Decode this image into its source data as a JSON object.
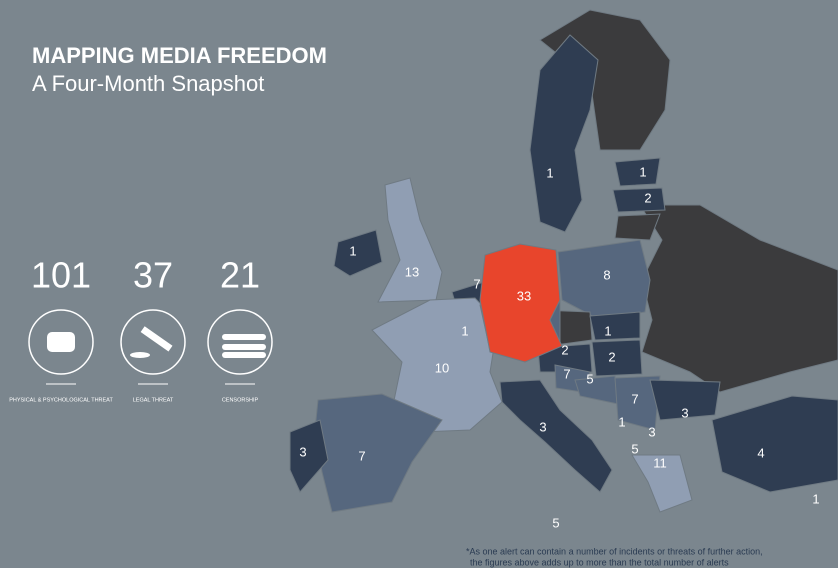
{
  "header": {
    "title": "MAPPING MEDIA FREEDOM",
    "subtitle": "A Four-Month Snapshot"
  },
  "stats": [
    {
      "value": 101,
      "label": "PHYSICAL & PSYCHOLOGICAL THREAT"
    },
    {
      "value": 37,
      "label": "LEGAL THREAT"
    },
    {
      "value": 21,
      "label": "CENSORSHIP"
    }
  ],
  "map": {
    "alerts": [
      1,
      1,
      2,
      1,
      13,
      7,
      1,
      33,
      8,
      1,
      2,
      2,
      7,
      5,
      7,
      10,
      3,
      7,
      3,
      1,
      3,
      5,
      11,
      3,
      4,
      1,
      5
    ]
  },
  "footnote": [
    "*As one alert can contain a number of incidents or threats of further action,",
    "the figures above adds up to more than the total number of alerts"
  ]
}
